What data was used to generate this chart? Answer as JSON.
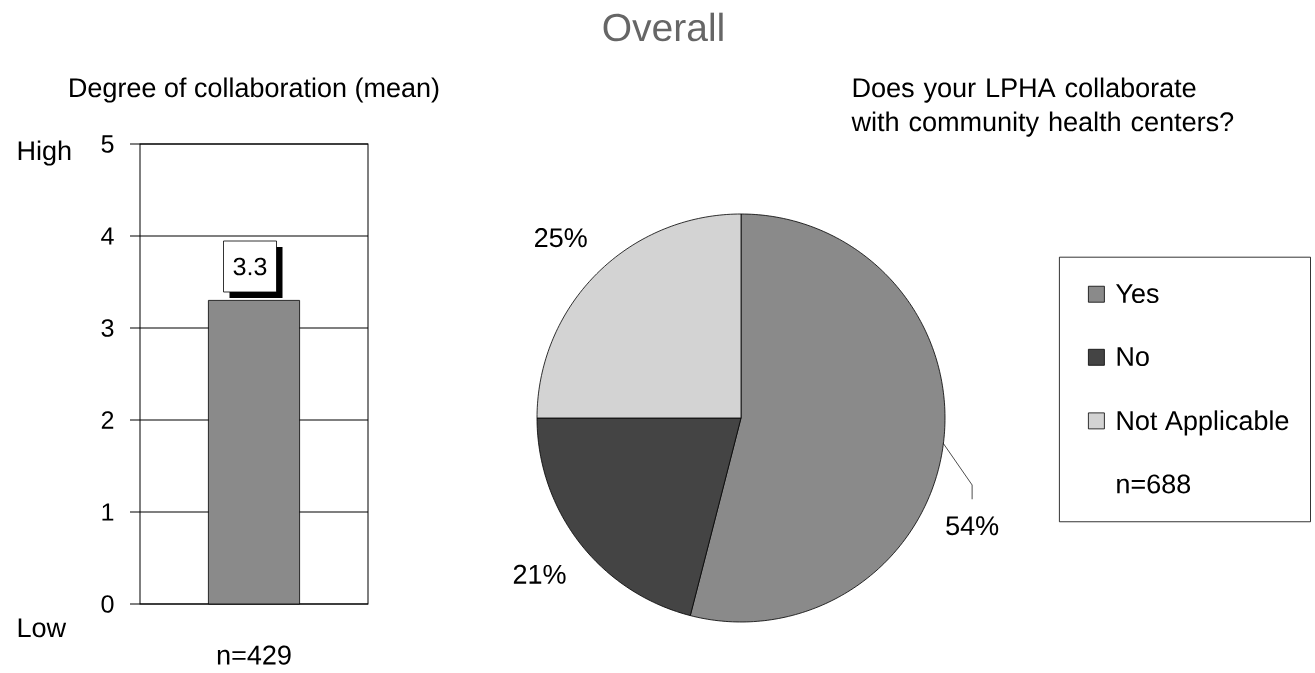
{
  "chart_data": [
    {
      "type": "other",
      "title": "Overall"
    },
    {
      "type": "bar",
      "title": "Degree of collaboration (mean)",
      "xlabel": "n=429",
      "categories": [
        null
      ],
      "values": [
        3.3
      ],
      "color": "#8a8a8a",
      "ylim": [
        0,
        5
      ],
      "yticks": [
        0,
        1,
        2,
        3,
        4,
        5
      ],
      "grid": "y",
      "value_labels": [
        "3.3"
      ],
      "annotations": [
        "High",
        "Low"
      ]
    },
    {
      "type": "pie",
      "title": "Does your LPHA collaborate with community health centers?",
      "categories": [
        "Yes",
        "No",
        "Not Applicable"
      ],
      "values": [
        54,
        21,
        25
      ],
      "colors": [
        "#8a8a8a",
        "#444444",
        "#d3d3d3"
      ],
      "value_labels": [
        "54%",
        "21%",
        "25%"
      ],
      "legend": "right",
      "annotations": [
        "n=688"
      ]
    }
  ]
}
